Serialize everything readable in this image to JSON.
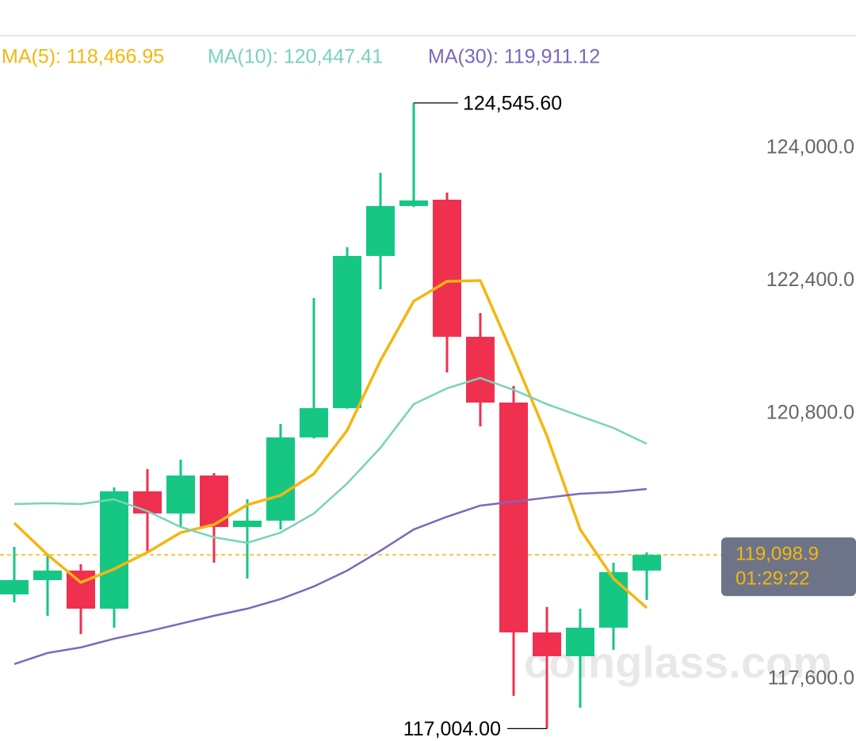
{
  "chart_data": {
    "type": "candlestick",
    "categories": [
      null,
      null,
      null,
      null,
      null,
      null,
      null,
      null,
      null,
      null,
      null,
      null,
      null,
      null,
      null,
      null,
      null,
      null,
      null,
      null
    ],
    "open": [
      118622,
      118794,
      118909,
      118450,
      119864,
      119597,
      120055,
      119434,
      119511,
      120514,
      120867,
      122701,
      123303,
      123379,
      121727,
      120934,
      118164,
      117877,
      118221,
      118909
    ],
    "high": [
      119195,
      119100,
      118985,
      119912,
      120131,
      120246,
      120084,
      119768,
      120676,
      122195,
      122806,
      123704,
      124545.6,
      123465,
      122013,
      121134,
      118469,
      118450,
      119004,
      119128
    ],
    "low": [
      118527,
      118364,
      118145,
      118221,
      119128,
      119434,
      119004,
      118813,
      119405,
      120500,
      120860,
      122300,
      123290,
      121297,
      120647,
      117400,
      117004,
      117256,
      117954,
      118555
    ],
    "close": [
      118794,
      118909,
      118450,
      119864,
      119597,
      120055,
      119434,
      119511,
      120514,
      120867,
      122701,
      123303,
      123370,
      121727,
      120934,
      118164,
      117877,
      118221,
      118890,
      119098.9
    ],
    "up_color": "#16c784",
    "down_color": "#f0304f",
    "series": [
      {
        "name": "MA(5): 118,466.95",
        "color": "#f5b60f",
        "values": [
          119482,
          119100,
          118766,
          118928,
          119128,
          119367,
          119463,
          119702,
          119816,
          120074,
          120599,
          121440,
          122156,
          122395,
          122405,
          121488,
          120533,
          119405,
          118813,
          118460
        ]
      },
      {
        "name": "MA(10): 120,447.41",
        "color": "#79d2bd",
        "values": [
          119711,
          119721,
          119711,
          119768,
          119625,
          119434,
          119310,
          119243,
          119367,
          119597,
          119959,
          120389,
          120915,
          121106,
          121230,
          121087,
          120915,
          120771,
          120628,
          120437
        ]
      },
      {
        "name": "MA(30): 119,911.12",
        "color": "#7b68bb",
        "values": [
          117782,
          117916,
          117983,
          118088,
          118174,
          118269,
          118364,
          118450,
          118565,
          118718,
          118909,
          119148,
          119405,
          119558,
          119692,
          119740,
          119788,
          119835,
          119854,
          119893
        ]
      }
    ],
    "ylim": [
      116855,
      125786
    ],
    "yticks": [
      {
        "value": 117600,
        "label": "117,600.0"
      },
      {
        "value": 120800,
        "label": "120,800.0"
      },
      {
        "value": 122400,
        "label": "122,400.0"
      },
      {
        "value": 124000,
        "label": "124,000.0"
      }
    ],
    "annotations": {
      "high": {
        "value": 124545.6,
        "label": "124,545.60"
      },
      "low": {
        "value": 117004,
        "label": "117,004.00"
      },
      "last_price": {
        "value": 119098.9,
        "label": "119,098.9"
      },
      "countdown": "01:29:22"
    },
    "watermark": "coinglass.com"
  }
}
